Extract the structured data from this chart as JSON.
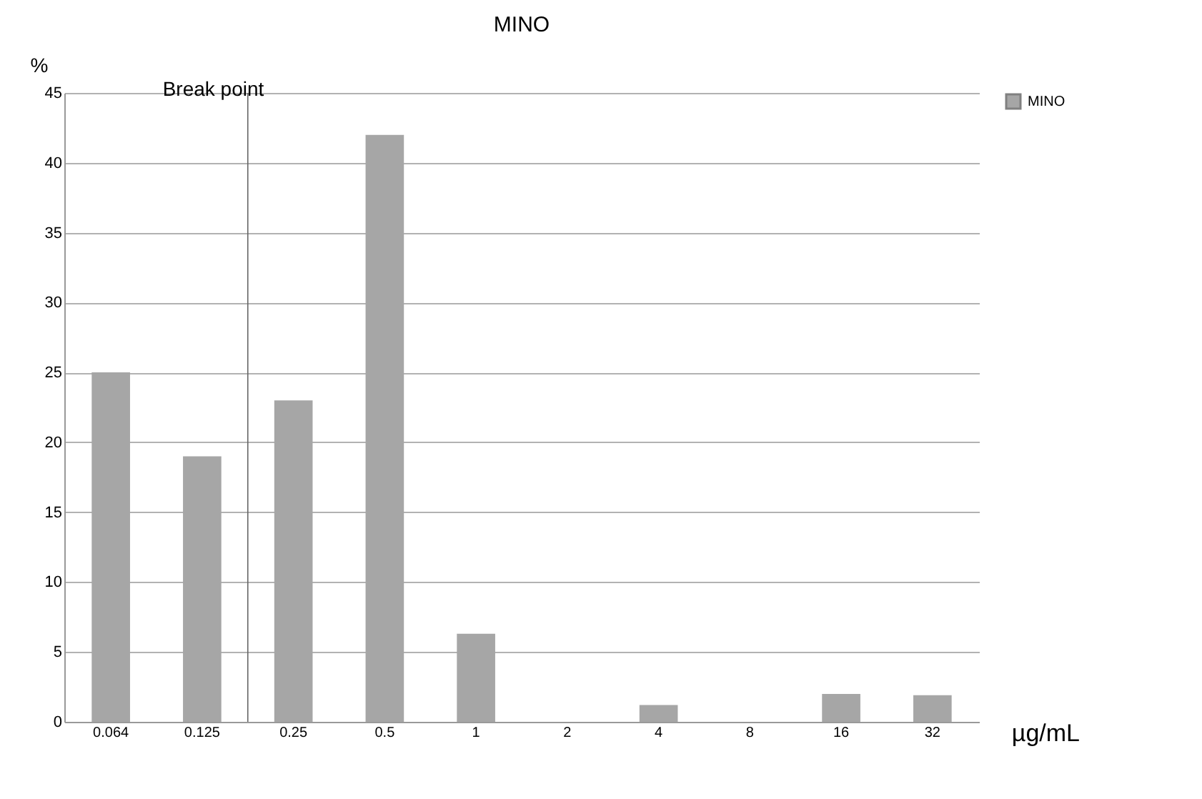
{
  "chart_data": {
    "type": "bar",
    "title": "MINO",
    "ylabel": "%",
    "xlabel": "µg/mL",
    "categories": [
      "0.064",
      "0.125",
      "0.25",
      "0.5",
      "1",
      "2",
      "4",
      "8",
      "16",
      "32"
    ],
    "series": [
      {
        "name": "MINO",
        "color": "#a6a6a6",
        "values": [
          25,
          19,
          23,
          42,
          6.3,
          0,
          1.2,
          0,
          2,
          1.9
        ]
      }
    ],
    "ylim": [
      0,
      45
    ],
    "yticks": [
      0,
      5,
      10,
      15,
      20,
      25,
      30,
      35,
      40,
      45
    ],
    "grid": "y",
    "legend": "right",
    "ref_lines": [
      {
        "axis": "x",
        "value": "0.25",
        "label": "Break point"
      }
    ]
  }
}
